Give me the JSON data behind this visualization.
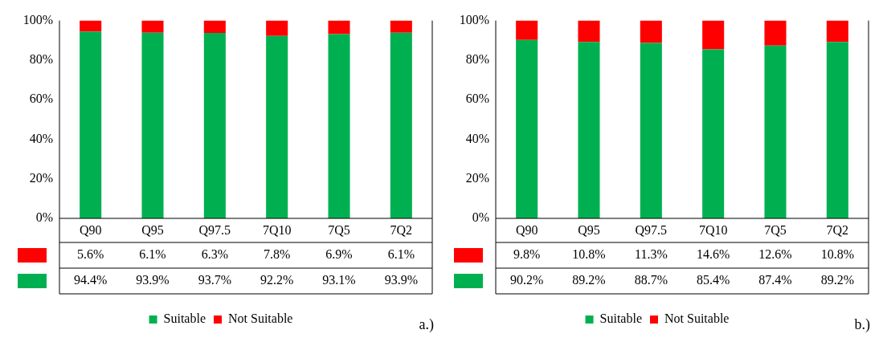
{
  "chart_data": [
    {
      "type": "bar",
      "stacked": true,
      "categories": [
        "Q90",
        "Q95",
        "Q97.5",
        "7Q10",
        "7Q5",
        "7Q2"
      ],
      "series": [
        {
          "name": "Suitable",
          "color": "#00b050",
          "values": [
            94.4,
            93.9,
            93.7,
            92.2,
            93.1,
            93.9
          ],
          "value_labels": [
            "94.4%",
            "93.9%",
            "93.7%",
            "92.2%",
            "93.1%",
            "93.9%"
          ]
        },
        {
          "name": "Not Suitable",
          "color": "#ff0000",
          "values": [
            5.6,
            6.1,
            6.3,
            7.8,
            6.9,
            6.1
          ],
          "value_labels": [
            "5.6%",
            "6.1%",
            "6.3%",
            "7.8%",
            "6.9%",
            "6.1%"
          ]
        }
      ],
      "ylim": [
        0,
        100
      ],
      "yticks": [
        {
          "value": 0,
          "label": "0%"
        },
        {
          "value": 20,
          "label": "20%"
        },
        {
          "value": 40,
          "label": "40%"
        },
        {
          "value": 60,
          "label": "60%"
        },
        {
          "value": 80,
          "label": "80%"
        },
        {
          "value": 100,
          "label": "100%"
        }
      ],
      "grid": false,
      "legend": "bottom",
      "annotations": [
        "a.)"
      ]
    },
    {
      "type": "bar",
      "stacked": true,
      "categories": [
        "Q90",
        "Q95",
        "Q97.5",
        "7Q10",
        "7Q5",
        "7Q2"
      ],
      "series": [
        {
          "name": "Suitable",
          "color": "#00b050",
          "values": [
            90.2,
            89.2,
            88.7,
            85.4,
            87.4,
            89.2
          ],
          "value_labels": [
            "90.2%",
            "89.2%",
            "88.7%",
            "85.4%",
            "87.4%",
            "89.2%"
          ]
        },
        {
          "name": "Not Suitable",
          "color": "#ff0000",
          "values": [
            9.8,
            10.8,
            11.3,
            14.6,
            12.6,
            10.8
          ],
          "value_labels": [
            "9.8%",
            "10.8%",
            "11.3%",
            "14.6%",
            "12.6%",
            "10.8%"
          ]
        }
      ],
      "ylim": [
        0,
        100
      ],
      "yticks": [
        {
          "value": 0,
          "label": "0%"
        },
        {
          "value": 20,
          "label": "20%"
        },
        {
          "value": 40,
          "label": "40%"
        },
        {
          "value": 60,
          "label": "60%"
        },
        {
          "value": 80,
          "label": "80%"
        },
        {
          "value": 100,
          "label": "100%"
        }
      ],
      "grid": false,
      "legend": "bottom",
      "annotations": [
        "b.)"
      ]
    }
  ]
}
